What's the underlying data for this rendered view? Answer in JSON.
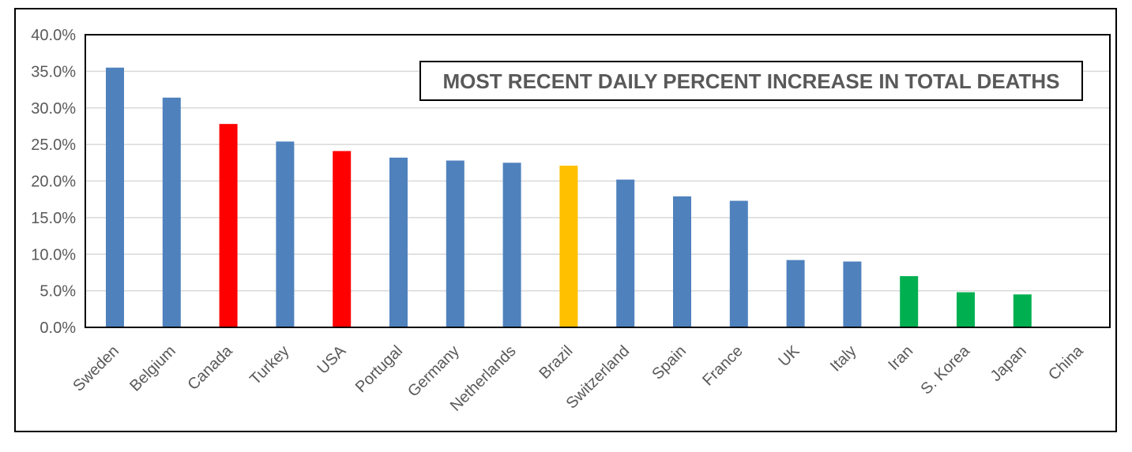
{
  "chart_data": {
    "type": "bar",
    "title": "MOST RECENT DAILY PERCENT INCREASE IN TOTAL DEATHS",
    "xlabel": "",
    "ylabel": "",
    "ylim": [
      0,
      40
    ],
    "yticks": [
      "0.0%",
      "5.0%",
      "10.0%",
      "15.0%",
      "20.0%",
      "25.0%",
      "30.0%",
      "35.0%",
      "40.0%"
    ],
    "categories": [
      "Sweden",
      "Belgium",
      "Canada",
      "Turkey",
      "USA",
      "Portugal",
      "Germany",
      "Netherlands",
      "Brazil",
      "Switzerland",
      "Spain",
      "France",
      "UK",
      "Italy",
      "Iran",
      "S. Korea",
      "Japan",
      "China"
    ],
    "values": [
      35.5,
      31.4,
      27.8,
      25.4,
      24.1,
      23.2,
      22.8,
      22.5,
      22.1,
      20.2,
      17.9,
      17.3,
      9.2,
      9.0,
      7.0,
      4.8,
      4.5,
      0.0
    ],
    "bar_colors": [
      "#4f81bd",
      "#4f81bd",
      "#ff0000",
      "#4f81bd",
      "#ff0000",
      "#4f81bd",
      "#4f81bd",
      "#4f81bd",
      "#ffc000",
      "#4f81bd",
      "#4f81bd",
      "#4f81bd",
      "#4f81bd",
      "#4f81bd",
      "#00b050",
      "#00b050",
      "#00b050",
      "#4f81bd"
    ],
    "grid": true,
    "legend": "none"
  }
}
